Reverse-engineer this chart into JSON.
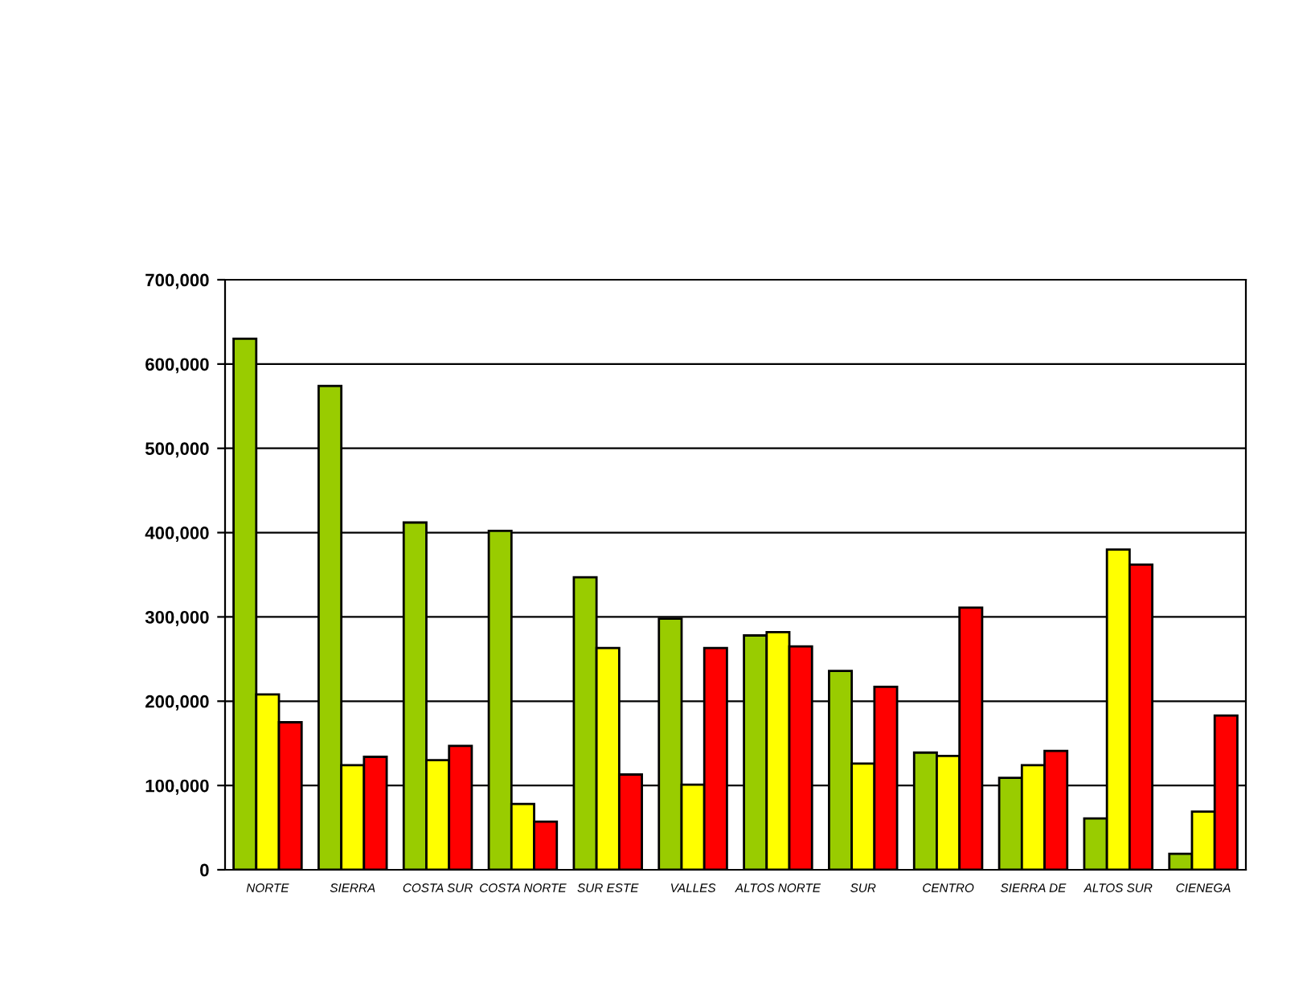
{
  "chart_data": {
    "type": "bar",
    "categories": [
      "NORTE",
      "SIERRA",
      "COSTA SUR",
      "COSTA NORTE",
      "SUR ESTE",
      "VALLES",
      "ALTOS NORTE",
      "SUR",
      "CENTRO",
      "SIERRA DE",
      "ALTOS SUR",
      "CIENEGA"
    ],
    "series": [
      {
        "color": "#99cc00",
        "values": [
          630000,
          574000,
          412000,
          402000,
          347000,
          298000,
          278000,
          236000,
          139000,
          109000,
          61000,
          19000
        ]
      },
      {
        "color": "#ffff00",
        "values": [
          208000,
          124000,
          130000,
          78000,
          263000,
          101000,
          282000,
          126000,
          135000,
          124000,
          380000,
          69000
        ]
      },
      {
        "color": "#ff0000",
        "values": [
          175000,
          134000,
          147000,
          57000,
          113000,
          263000,
          265000,
          217000,
          311000,
          141000,
          362000,
          183000
        ]
      }
    ],
    "ylim": [
      0,
      700000
    ],
    "yticks": [
      {
        "value": 0,
        "label": "0"
      },
      {
        "value": 100000,
        "label": "100,000"
      },
      {
        "value": 200000,
        "label": "200,000"
      },
      {
        "value": 300000,
        "label": "300,000"
      },
      {
        "value": 400000,
        "label": "400,000"
      },
      {
        "value": 500000,
        "label": "500,000"
      },
      {
        "value": 600000,
        "label": "600,000"
      },
      {
        "value": 700000,
        "label": "700,000"
      }
    ],
    "grid": "y"
  }
}
